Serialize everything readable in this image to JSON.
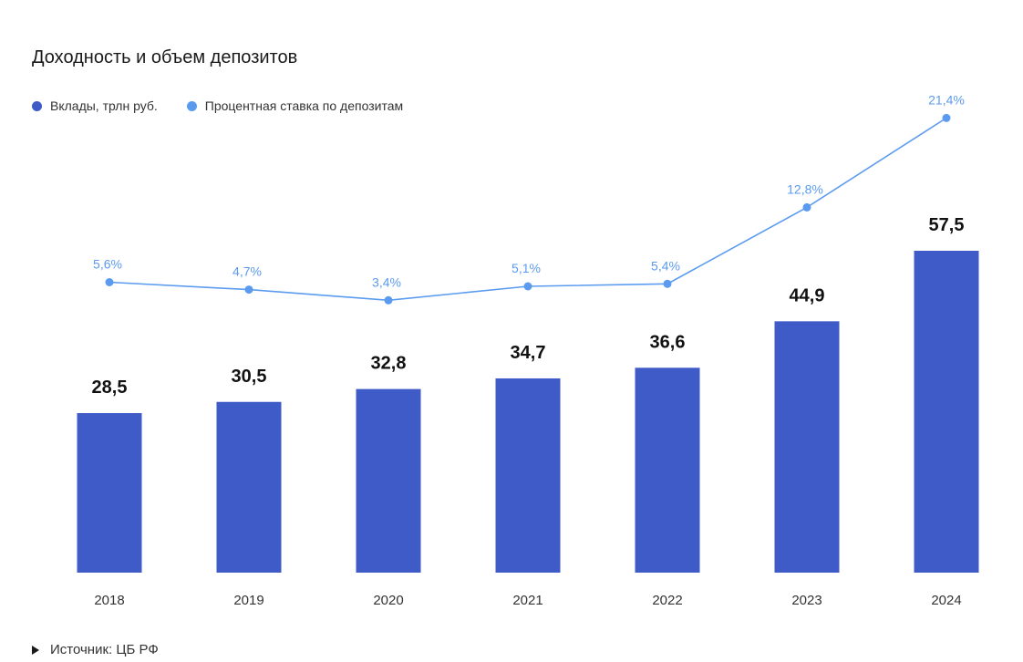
{
  "chart_data": {
    "type": "bar",
    "title": "Доходность и объем депозитов",
    "categories": [
      "2018",
      "2019",
      "2020",
      "2021",
      "2022",
      "2023",
      "2024"
    ],
    "series": [
      {
        "name": "Вклады, трлн руб.",
        "kind": "bar",
        "values": [
          28.5,
          30.5,
          32.8,
          34.7,
          36.6,
          44.9,
          57.5
        ],
        "labels": [
          "28,5",
          "30,5",
          "32,8",
          "34,7",
          "36,6",
          "44,9",
          "57,5"
        ],
        "color": "#3f5bc7"
      },
      {
        "name": "Процентная ставка по депозитам",
        "kind": "line",
        "values": [
          5.6,
          4.7,
          3.4,
          5.1,
          5.4,
          12.8,
          21.4
        ],
        "labels": [
          "5,6%",
          "4,7%",
          "3,4%",
          "5,1%",
          "5,4%",
          "12,8%",
          "21,4%"
        ],
        "color": "#5b9bef"
      }
    ],
    "xlabel": "",
    "ylabel": "",
    "ylim": [
      0,
      57.5
    ],
    "grid": false,
    "legend_position": "top-left"
  },
  "source": "Источник: ЦБ РФ"
}
